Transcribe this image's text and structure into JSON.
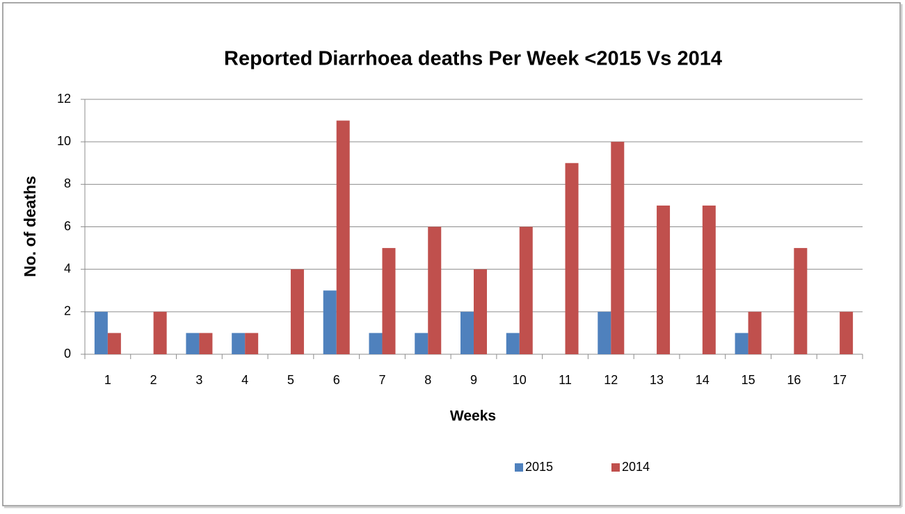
{
  "chart_data": {
    "type": "bar",
    "title": "Reported Diarrhoea deaths Per Week <2015 Vs 2014",
    "x_label": "Weeks",
    "y_label": "No. of deaths",
    "categories": [
      "1",
      "2",
      "3",
      "4",
      "5",
      "6",
      "7",
      "8",
      "9",
      "10",
      "11",
      "12",
      "13",
      "14",
      "15",
      "16",
      "17"
    ],
    "series": [
      {
        "name": "2015",
        "color": "#4f81bd",
        "values": [
          2,
          0,
          1,
          1,
          0,
          3,
          1,
          1,
          2,
          1,
          0,
          2,
          0,
          0,
          1,
          0,
          0
        ]
      },
      {
        "name": "2014",
        "color": "#c0504d",
        "values": [
          1,
          2,
          1,
          1,
          4,
          11,
          5,
          6,
          4,
          6,
          9,
          10,
          7,
          7,
          2,
          5,
          2
        ]
      }
    ],
    "ylim": [
      0,
      12
    ],
    "yticks": [
      0,
      2,
      4,
      6,
      8,
      10,
      12
    ],
    "grid": true,
    "legend": "bottom"
  }
}
